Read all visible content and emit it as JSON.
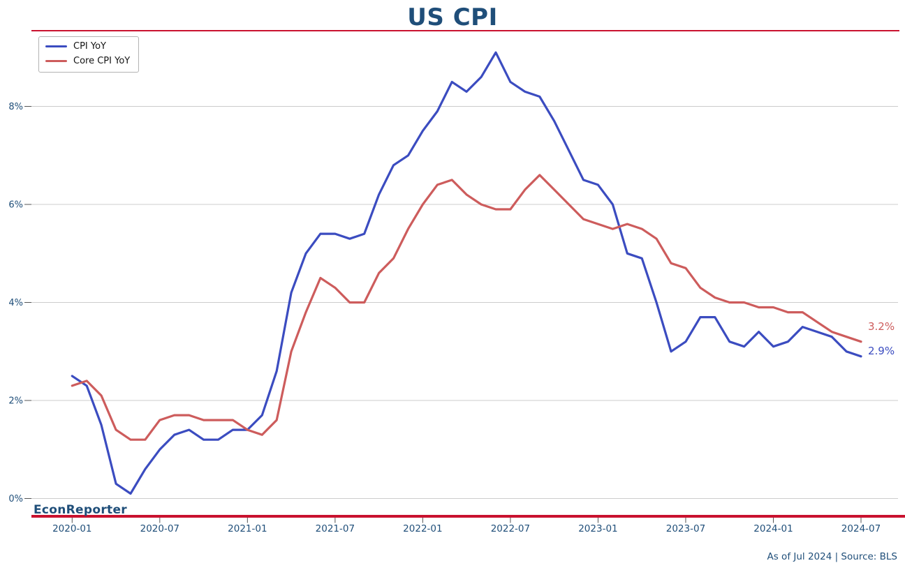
{
  "branding": "EconReporter",
  "footer_note": "As of Jul 2024 | Source: BLS",
  "colors": {
    "heading_text": "#1f4e79",
    "axis_text": "#1f4e79",
    "accent_rule": "#c9122f",
    "cpi_line": "#3b4cc0",
    "core_cpi_line": "#cd5c5c",
    "gridline": "#cccccc",
    "tick": "#555555"
  },
  "chart_data": {
    "type": "line",
    "title": "US CPI",
    "grid": "horizontal",
    "legend_position": "upper-left",
    "ylim": [
      -0.35,
      9.55
    ],
    "y_ticks": [
      0,
      2,
      4,
      6,
      8
    ],
    "y_tick_labels": [
      "0%",
      "2%",
      "4%",
      "6%",
      "8%"
    ],
    "x_tick_labels": [
      "2020-01",
      "2020-07",
      "2021-01",
      "2021-07",
      "2022-01",
      "2022-07",
      "2023-01",
      "2023-07",
      "2024-01",
      "2024-07"
    ],
    "x": [
      "2020-01",
      "2020-02",
      "2020-03",
      "2020-04",
      "2020-05",
      "2020-06",
      "2020-07",
      "2020-08",
      "2020-09",
      "2020-10",
      "2020-11",
      "2020-12",
      "2021-01",
      "2021-02",
      "2021-03",
      "2021-04",
      "2021-05",
      "2021-06",
      "2021-07",
      "2021-08",
      "2021-09",
      "2021-10",
      "2021-11",
      "2021-12",
      "2022-01",
      "2022-02",
      "2022-03",
      "2022-04",
      "2022-05",
      "2022-06",
      "2022-07",
      "2022-08",
      "2022-09",
      "2022-10",
      "2022-11",
      "2022-12",
      "2023-01",
      "2023-02",
      "2023-03",
      "2023-04",
      "2023-05",
      "2023-06",
      "2023-07",
      "2023-08",
      "2023-09",
      "2023-10",
      "2023-11",
      "2023-12",
      "2024-01",
      "2024-02",
      "2024-03",
      "2024-04",
      "2024-05",
      "2024-06",
      "2024-07"
    ],
    "series": [
      {
        "name": "CPI YoY",
        "color": "#3b4cc0",
        "values": [
          2.5,
          2.3,
          1.5,
          0.3,
          0.1,
          0.6,
          1.0,
          1.3,
          1.4,
          1.2,
          1.2,
          1.4,
          1.4,
          1.7,
          2.6,
          4.2,
          5.0,
          5.4,
          5.4,
          5.3,
          5.4,
          6.2,
          6.8,
          7.0,
          7.5,
          7.9,
          8.5,
          8.3,
          8.6,
          9.1,
          8.5,
          8.3,
          8.2,
          7.7,
          7.1,
          6.5,
          6.4,
          6.0,
          5.0,
          4.9,
          4.0,
          3.0,
          3.2,
          3.7,
          3.7,
          3.2,
          3.1,
          3.4,
          3.1,
          3.2,
          3.5,
          3.4,
          3.3,
          3.0,
          2.9
        ]
      },
      {
        "name": "Core CPI YoY",
        "color": "#cd5c5c",
        "values": [
          2.3,
          2.4,
          2.1,
          1.4,
          1.2,
          1.2,
          1.6,
          1.7,
          1.7,
          1.6,
          1.6,
          1.6,
          1.4,
          1.3,
          1.6,
          3.0,
          3.8,
          4.5,
          4.3,
          4.0,
          4.0,
          4.6,
          4.9,
          5.5,
          6.0,
          6.4,
          6.5,
          6.2,
          6.0,
          5.9,
          5.9,
          6.3,
          6.6,
          6.3,
          6.0,
          5.7,
          5.6,
          5.5,
          5.6,
          5.5,
          5.3,
          4.8,
          4.7,
          4.3,
          4.1,
          4.0,
          4.0,
          3.9,
          3.9,
          3.8,
          3.8,
          3.6,
          3.4,
          3.3,
          3.2
        ]
      }
    ],
    "end_labels": [
      {
        "series": "Core CPI YoY",
        "text": "3.2%"
      },
      {
        "series": "CPI YoY",
        "text": "2.9%"
      }
    ]
  }
}
